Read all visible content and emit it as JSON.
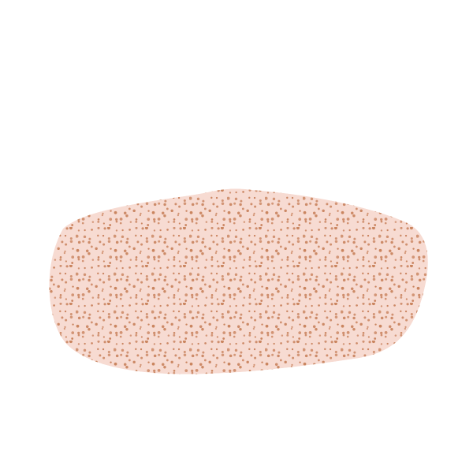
{
  "shape": {
    "icon": "speckled-blob-icon",
    "fill_color": "#f7dbd2",
    "dot_color": "#c9835e"
  }
}
